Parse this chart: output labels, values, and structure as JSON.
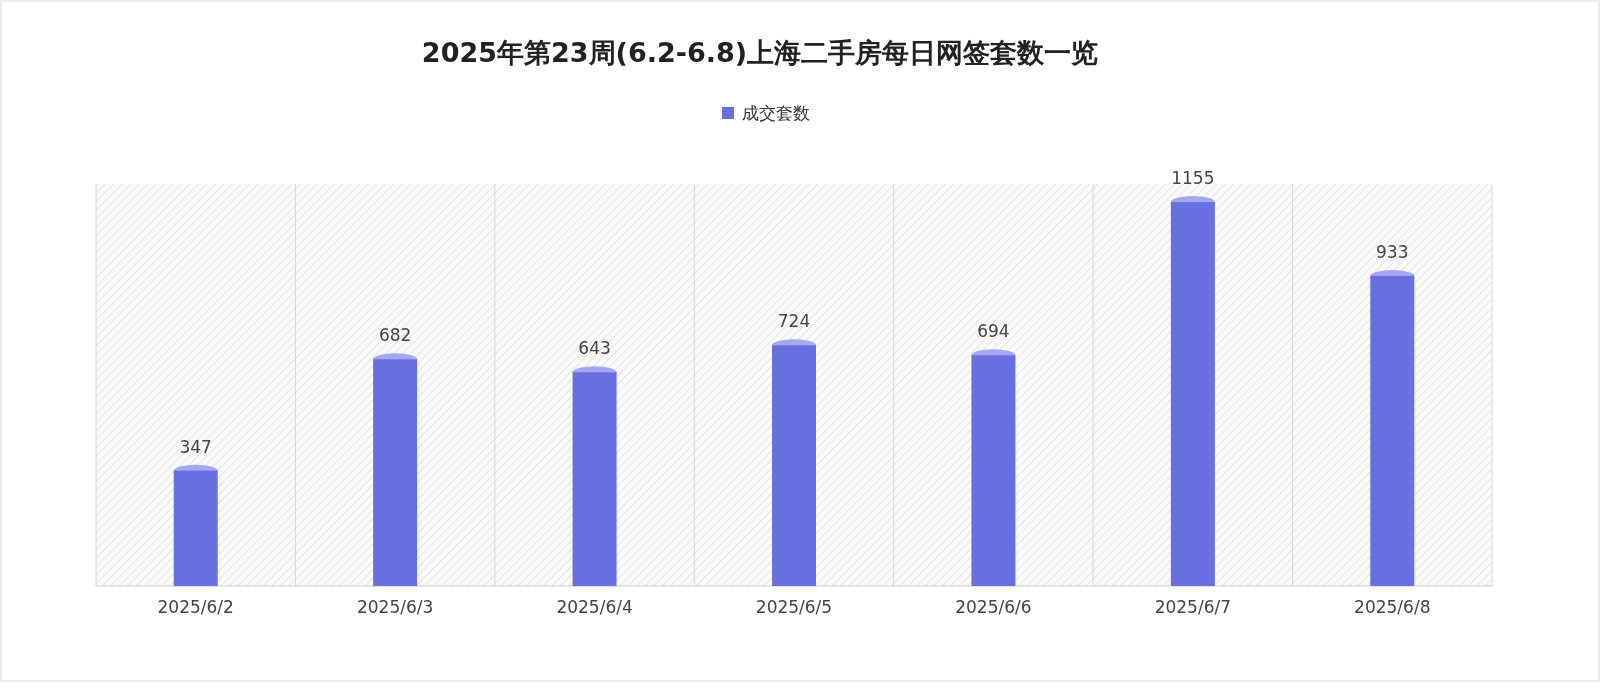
{
  "chart_data": {
    "type": "bar",
    "title": "2025年第23周(6.2-6.8)上海二手房每日网签套数一览",
    "categories": [
      "2025/6/2",
      "2025/6/3",
      "2025/6/4",
      "2025/6/5",
      "2025/6/6",
      "2025/6/7",
      "2025/6/8"
    ],
    "series": [
      {
        "name": "成交套数",
        "color": "#6870e0",
        "values": [
          347,
          682,
          643,
          724,
          694,
          1155,
          933
        ]
      }
    ],
    "data_labels": true,
    "legend": "top",
    "grid": "x"
  }
}
